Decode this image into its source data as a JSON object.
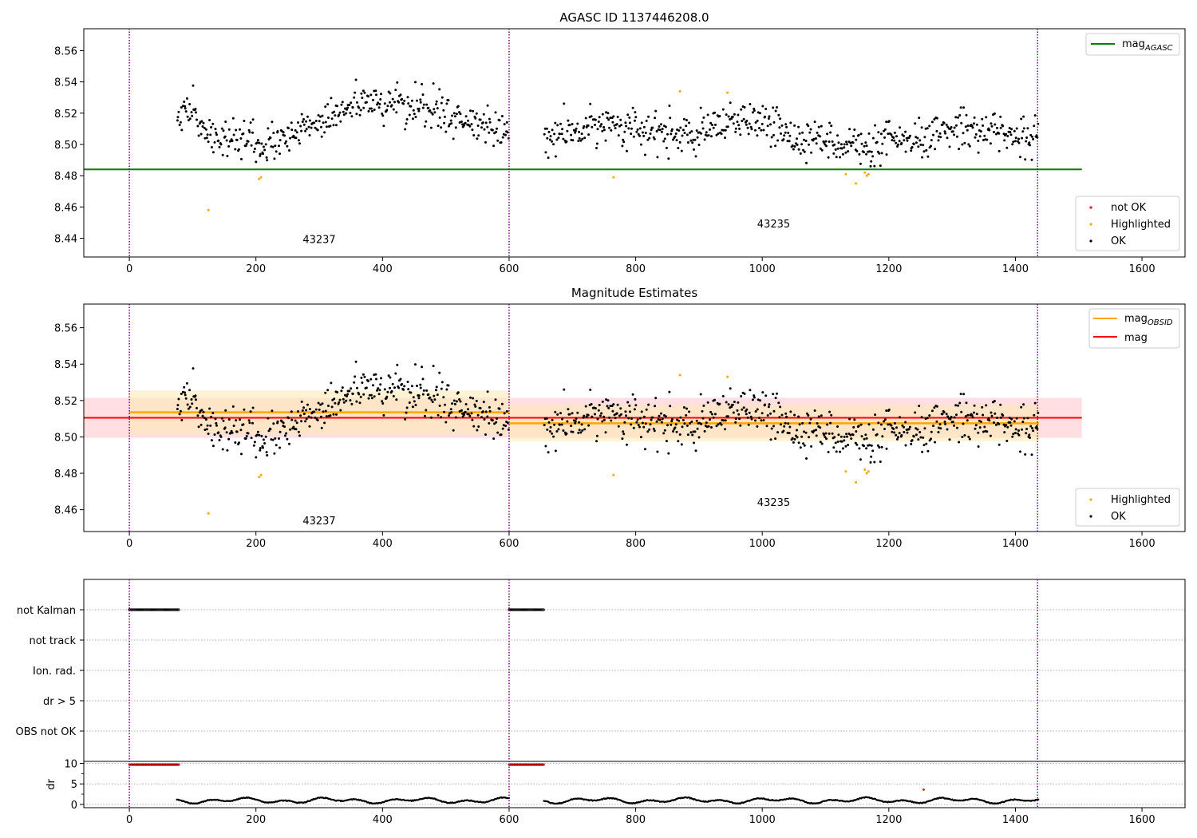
{
  "colors": {
    "ok": "#000000",
    "highlighted": "#ffa500",
    "not_ok": "#ff0000",
    "mag_agasc": "#008000",
    "mag_obsid": "#ffa500",
    "mag": "#ff0000",
    "obsid_boundary": "#800080",
    "band_obsid": "#ffe9b3",
    "band_mag": "#ffd9dc"
  },
  "chart_data": [
    {
      "type": "scatter",
      "title": "AGASC ID 1137446208.0",
      "xlim": [
        -72,
        1668
      ],
      "ylim": [
        8.428,
        8.574
      ],
      "x_ticks": [
        0,
        200,
        400,
        600,
        800,
        1000,
        1200,
        1400,
        1600
      ],
      "y_ticks": [
        8.44,
        8.46,
        8.48,
        8.5,
        8.52,
        8.54,
        8.56
      ],
      "obsid_boundaries": [
        0,
        600,
        1435
      ],
      "annotations": [
        {
          "text": "43237",
          "x": 300,
          "y": 8.437
        },
        {
          "text": "43235",
          "x": 1018,
          "y": 8.447
        }
      ],
      "lines": [
        {
          "name": "mag",
          "subscript": "AGASC",
          "y": 8.484,
          "x": [
            -72,
            1505
          ],
          "color": "#008000"
        }
      ],
      "legend_lines_position": "upper-right",
      "legend_points": [
        {
          "name": "not OK",
          "color": "#ff0000"
        },
        {
          "name": "Highlighted",
          "color": "#ffa500"
        },
        {
          "name": "OK",
          "color": "#000000"
        }
      ],
      "legend_points_position": "lower-right",
      "highlighted_points": {
        "x": [
          125,
          205,
          208,
          765,
          870,
          945,
          1132,
          1148,
          1162,
          1165,
          1168
        ],
        "y": [
          8.458,
          8.478,
          8.479,
          8.479,
          8.534,
          8.533,
          8.481,
          8.475,
          8.482,
          8.48,
          8.481
        ]
      },
      "ok_points_envelope": {
        "segments": [
          [
            75,
            600
          ],
          [
            655,
            1437
          ]
        ],
        "trend": {
          "x": [
            75,
            100,
            130,
            160,
            200,
            250,
            300,
            350,
            400,
            450,
            500,
            540,
            570,
            600,
            655,
            700,
            760,
            800,
            860,
            900,
            950,
            1000,
            1050,
            1100,
            1150,
            1170,
            1200,
            1250,
            1300,
            1350,
            1400,
            1437
          ],
          "y": [
            8.522,
            8.52,
            8.505,
            8.502,
            8.5,
            8.503,
            8.515,
            8.525,
            8.527,
            8.525,
            8.52,
            8.512,
            8.508,
            8.51,
            8.503,
            8.507,
            8.515,
            8.508,
            8.507,
            8.505,
            8.513,
            8.515,
            8.505,
            8.503,
            8.5,
            8.493,
            8.503,
            8.5,
            8.512,
            8.51,
            8.505,
            8.505
          ]
        },
        "scatter": 0.011,
        "count": 1000
      }
    },
    {
      "type": "scatter",
      "title": "Magnitude Estimates",
      "xlim": [
        -72,
        1668
      ],
      "ylim": [
        8.448,
        8.573
      ],
      "x_ticks": [
        0,
        200,
        400,
        600,
        800,
        1000,
        1200,
        1400,
        1600
      ],
      "y_ticks": [
        8.46,
        8.48,
        8.5,
        8.52,
        8.54,
        8.56
      ],
      "obsid_boundaries": [
        0,
        600,
        1435
      ],
      "annotations": [
        {
          "text": "43237",
          "x": 300,
          "y": 8.452
        },
        {
          "text": "43235",
          "x": 1018,
          "y": 8.462
        }
      ],
      "lines": [
        {
          "name": "mag",
          "subscript": "OBSID",
          "segments": [
            {
              "x": [
                0,
                600
              ],
              "y": 8.5135,
              "band": [
                8.5015,
                8.5255
              ]
            },
            {
              "x": [
                600,
                1437
              ],
              "y": 8.5075,
              "band": [
                8.4975,
                8.5175
              ]
            }
          ],
          "color": "#ffa500"
        },
        {
          "name": "mag",
          "y": 8.5105,
          "x": [
            -72,
            1505
          ],
          "band": [
            8.4995,
            8.5215
          ],
          "color": "#ff0000"
        }
      ],
      "legend_lines_position": "upper-right",
      "legend_points": [
        {
          "name": "Highlighted",
          "color": "#ffa500"
        },
        {
          "name": "OK",
          "color": "#000000"
        }
      ],
      "legend_points_position": "lower-right"
    },
    {
      "type": "scatter",
      "title": "",
      "xlim": [
        -72,
        1668
      ],
      "x_ticks": [
        0,
        200,
        400,
        600,
        800,
        1000,
        1200,
        1400,
        1600
      ],
      "obsid_boundaries": [
        0,
        600,
        1435
      ],
      "flag_rows": [
        "not Kalman",
        "not track",
        "Ion. rad.",
        "dr > 5",
        "OBS not OK"
      ],
      "flag_points": [
        {
          "row": "not Kalman",
          "x_ranges": [
            [
              0,
              78
            ],
            [
              600,
              655
            ]
          ]
        }
      ],
      "dr_panel": {
        "ylabel": "dr",
        "ylim": [
          -0.8,
          10.5
        ],
        "y_ticks": [
          0,
          5,
          10
        ],
        "not_ok_ranges": [
          {
            "x": [
              0,
              78
            ],
            "y": 9.7
          },
          {
            "x": [
              600,
              655
            ],
            "y": 9.7
          }
        ],
        "outlier": {
          "x": 1255,
          "y": 3.6
        },
        "ok_segments": [
          [
            75,
            600
          ],
          [
            655,
            1437
          ]
        ],
        "typical_range": [
          0.2,
          1.9
        ]
      }
    }
  ],
  "legend_text": {
    "mag_agasc": "mag",
    "mag_agasc_sub": "AGASC",
    "mag_obsid": "mag",
    "mag_obsid_sub": "OBSID",
    "mag": "mag",
    "not_ok": "not OK",
    "highlighted": "Highlighted",
    "ok": "OK"
  }
}
